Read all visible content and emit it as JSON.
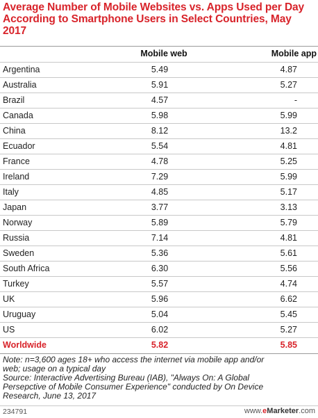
{
  "title": "Average Number of Mobile Websites vs. Apps Used per Day According to Smartphone Users in Select Countries, May 2017",
  "chart_data": {
    "type": "table",
    "title": "Average Number of Mobile Websites vs. Apps Used per Day According to Smartphone Users in Select Countries, May 2017",
    "columns": [
      "",
      "Mobile web",
      "Mobile app"
    ],
    "rows": [
      {
        "country": "Argentina",
        "web": "5.49",
        "app": "4.87"
      },
      {
        "country": "Australia",
        "web": "5.91",
        "app": "5.27"
      },
      {
        "country": "Brazil",
        "web": "4.57",
        "app": "-"
      },
      {
        "country": "Canada",
        "web": "5.98",
        "app": "5.99"
      },
      {
        "country": "China",
        "web": "8.12",
        "app": "13.2"
      },
      {
        "country": "Ecuador",
        "web": "5.54",
        "app": "4.81"
      },
      {
        "country": "France",
        "web": "4.78",
        "app": "5.25"
      },
      {
        "country": "Ireland",
        "web": "7.29",
        "app": "5.99"
      },
      {
        "country": "Italy",
        "web": "4.85",
        "app": "5.17"
      },
      {
        "country": "Japan",
        "web": "3.77",
        "app": "3.13"
      },
      {
        "country": "Norway",
        "web": "5.89",
        "app": "5.79"
      },
      {
        "country": "Russia",
        "web": "7.14",
        "app": "4.81"
      },
      {
        "country": "Sweden",
        "web": "5.36",
        "app": "5.61"
      },
      {
        "country": "South Africa",
        "web": "6.30",
        "app": "5.56"
      },
      {
        "country": "Turkey",
        "web": "5.57",
        "app": "4.74"
      },
      {
        "country": "UK",
        "web": "5.96",
        "app": "6.62"
      },
      {
        "country": "Uruguay",
        "web": "5.04",
        "app": "5.45"
      },
      {
        "country": "US",
        "web": "6.02",
        "app": "5.27"
      },
      {
        "country": "Worldwide",
        "web": "5.82",
        "app": "5.85",
        "highlight": true
      }
    ]
  },
  "notes": {
    "line1": "Note: n=3,600 ages 18+ who access the internet via mobile app and/or",
    "line2": "web; usage on a typical day",
    "line3": "Source: Interactive Advertising Bureau (IAB), \"Always On: A Global",
    "line4": "Persepctive of Mobile Consumer Experience\" conducted by On Device",
    "line5": "Research, June 13, 2017"
  },
  "footer": {
    "id": "234791",
    "brand_prefix": "www.",
    "brand_e": "e",
    "brand_name": "Marketer",
    "brand_suffix": ".com"
  },
  "colors": {
    "accent": "#d8232a",
    "text": "#222222",
    "rule": "#c8c8c8"
  }
}
